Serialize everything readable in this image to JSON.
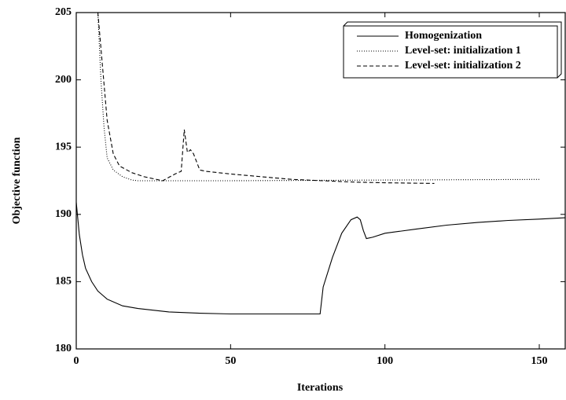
{
  "chart_data": {
    "type": "line",
    "x_label": "Iterations",
    "y_label": "Objective function",
    "xlim": [
      0,
      158.4
    ],
    "ylim": [
      180,
      205
    ],
    "xticks": [
      0,
      50,
      100,
      150
    ],
    "yticks": [
      180,
      185,
      190,
      195,
      200,
      205
    ],
    "legend": "top-right",
    "series": [
      {
        "name": "Homogenization",
        "color": "#000",
        "dash": "solid",
        "x": [
          0,
          1,
          2,
          3,
          5,
          7,
          10,
          15,
          20,
          30,
          40,
          50,
          60,
          70,
          79,
          80,
          83,
          86,
          89,
          91,
          92,
          93,
          94,
          96,
          100,
          110,
          120,
          130,
          140,
          150,
          158.4
        ],
        "values": [
          190.9,
          188.5,
          187.0,
          186.0,
          185.0,
          184.3,
          183.7,
          183.2,
          183.0,
          182.75,
          182.65,
          182.6,
          182.6,
          182.6,
          182.6,
          184.6,
          186.8,
          188.6,
          189.6,
          189.8,
          189.6,
          188.8,
          188.2,
          188.3,
          188.6,
          188.9,
          189.2,
          189.4,
          189.55,
          189.65,
          189.75
        ]
      },
      {
        "name": "Level-set: initialization 1",
        "color": "#000",
        "dash": "dotted",
        "x": [
          7,
          8,
          9,
          10,
          12,
          15,
          18,
          20,
          30,
          50,
          100,
          150
        ],
        "values": [
          205,
          200,
          196.5,
          194.2,
          193.3,
          192.8,
          192.55,
          192.5,
          192.5,
          192.5,
          192.55,
          192.6
        ]
      },
      {
        "name": "Level-set: initialization 2",
        "color": "#000",
        "dash": "dashed",
        "x": [
          7,
          8.5,
          10,
          12,
          14,
          18,
          22,
          28,
          32,
          34,
          35,
          36,
          37,
          38,
          40,
          42,
          50,
          60,
          70,
          80,
          90,
          100,
          116
        ],
        "values": [
          205,
          201,
          197,
          194.5,
          193.6,
          193.1,
          192.8,
          192.5,
          193.0,
          193.2,
          196.3,
          194.6,
          194.8,
          194.5,
          193.3,
          193.2,
          193.0,
          192.8,
          192.6,
          192.5,
          192.4,
          192.35,
          192.3
        ]
      }
    ]
  }
}
